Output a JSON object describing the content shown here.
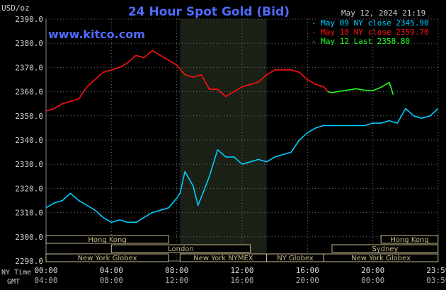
{
  "chart_data": {
    "type": "line",
    "title": "24 Hour Spot Gold (Bid)",
    "ylabel": "USD/oz",
    "watermark": "www.kitco.com",
    "date_stamp": "May 12, 2024 21:19",
    "ylim": [
      2290,
      2390
    ],
    "yticks": [
      "2390.0",
      "2380.0",
      "2370.0",
      "2360.0",
      "2350.0",
      "2340.0",
      "2330.0",
      "2320.0",
      "2310.0",
      "2300.0",
      "2290.0"
    ],
    "x_axis_labels": {
      "ny_time_label": "NY Time",
      "gmt_label": "GMT",
      "ny_ticks": [
        "00:00",
        "04:00",
        "08:00",
        "12:00",
        "16:00",
        "20:00",
        "23:59"
      ],
      "gmt_ticks": [
        "04:00",
        "08:00",
        "12:00",
        "16:00",
        "20:00",
        "00:00",
        "03:59"
      ]
    },
    "legend": [
      {
        "label": "May 09 NY close 2345.90",
        "color": "#00ccff"
      },
      {
        "label": "May 10 NY close 2359.70",
        "color": "#ff1010"
      },
      {
        "label": "May 12 Last 2358.80",
        "color": "#22ff22"
      }
    ],
    "sessions": [
      {
        "label": "Hong Kong",
        "start": 0.0,
        "end": 7.5,
        "row": 0
      },
      {
        "label": "Hong Kong",
        "start": 20.5,
        "end": 23.99,
        "row": 0
      },
      {
        "label": "London",
        "start": 4.0,
        "end": 12.5,
        "row": 1
      },
      {
        "label": "Sydney",
        "start": 17.5,
        "end": 23.99,
        "row": 1
      },
      {
        "label": "New York Globex",
        "start": 0.0,
        "end": 7.5,
        "row": 2
      },
      {
        "label": "New York NYMEX",
        "start": 8.2,
        "end": 13.5,
        "row": 2
      },
      {
        "label": "NY Globex",
        "start": 13.5,
        "end": 17.0,
        "row": 2
      },
      {
        "label": "New York Globex",
        "start": 17.0,
        "end": 23.99,
        "row": 2
      }
    ],
    "nymex_shade": [
      8.2,
      13.5
    ],
    "series": [
      {
        "name": "May 09",
        "color": "#00ccff",
        "x": [
          0,
          0.5,
          1,
          1.5,
          2,
          2.5,
          3,
          3.5,
          4,
          4.5,
          5,
          5.5,
          6,
          6.5,
          7,
          7.5,
          8,
          8.2,
          8.5,
          9,
          9.3,
          9.6,
          10,
          10.5,
          11,
          11.5,
          12,
          12.5,
          13,
          13.5,
          14,
          14.5,
          15,
          15.5,
          16,
          16.5,
          17,
          17.5,
          18,
          18.5,
          19,
          19.5,
          20,
          20.5,
          21,
          21.5,
          22,
          22.5,
          23,
          23.5,
          23.99
        ],
        "values": [
          2312,
          2314,
          2315,
          2318,
          2315,
          2313,
          2311,
          2308,
          2306,
          2307,
          2306,
          2306,
          2308,
          2310,
          2311,
          2312,
          2316,
          2318,
          2327,
          2321,
          2313,
          2318,
          2325,
          2336,
          2333,
          2333,
          2330,
          2331,
          2332,
          2331,
          2333,
          2334,
          2335,
          2340,
          2343,
          2345,
          2346,
          2346,
          2346,
          2346,
          2346,
          2346,
          2347,
          2347,
          2348,
          2347,
          2353,
          2350,
          2349,
          2350,
          2353
        ]
      },
      {
        "name": "May 10",
        "color": "#ff1010",
        "x": [
          0,
          0.5,
          1,
          1.5,
          2,
          2.5,
          3,
          3.5,
          4,
          4.5,
          5,
          5.5,
          6,
          6.5,
          7,
          7.5,
          8,
          8.5,
          9,
          9.5,
          10,
          10.5,
          11,
          11.5,
          12,
          12.5,
          13,
          13.5,
          14,
          14.5,
          15,
          15.5,
          16,
          16.5,
          17,
          17.25
        ],
        "values": [
          2352,
          2353,
          2355,
          2356,
          2357,
          2362,
          2365,
          2368,
          2369,
          2370,
          2372,
          2375,
          2374,
          2377,
          2375,
          2373,
          2371,
          2367,
          2366,
          2367,
          2361,
          2361,
          2358,
          2360,
          2362,
          2363,
          2364,
          2367,
          2369,
          2369,
          2369,
          2368,
          2365,
          2363,
          2362,
          2360
        ]
      },
      {
        "name": "May 12",
        "color": "#22ff22",
        "x": [
          17.25,
          17.5,
          18,
          18.5,
          19,
          19.5,
          20,
          20.5,
          21,
          21.25
        ],
        "values": [
          2360,
          2359.6,
          2360.2,
          2360.7,
          2361.2,
          2360.6,
          2360.4,
          2361.8,
          2363.8,
          2358.8
        ]
      }
    ]
  }
}
